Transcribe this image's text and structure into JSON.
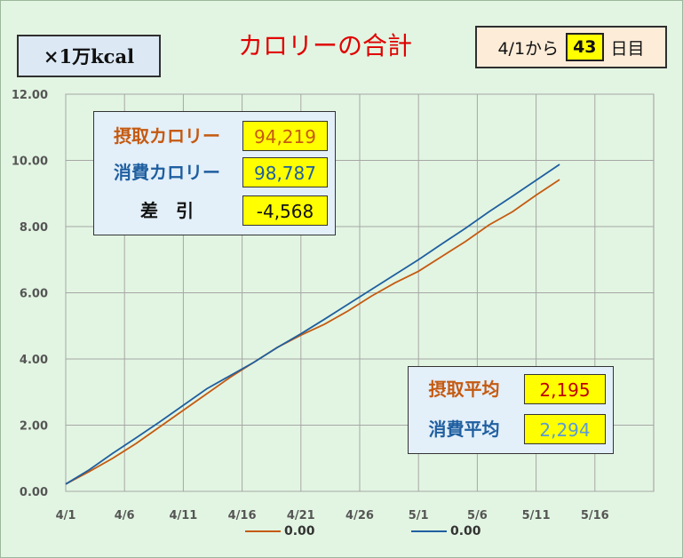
{
  "header": {
    "unit": "×1万kcal",
    "title": "カロリーの合計",
    "day_prefix": "4/1から",
    "day_count": "43",
    "day_suffix": "日目"
  },
  "totals": {
    "intake_label": "摂取カロリー",
    "intake_value": "94,219",
    "burn_label": "消費カロリー",
    "burn_value": "98,787",
    "diff_label": "差　引",
    "diff_value": "-4,568"
  },
  "averages": {
    "intake_label": "摂取平均",
    "intake_value": "2,195",
    "burn_label": "消費平均",
    "burn_value": "2,294"
  },
  "legend": {
    "series1": "0.00",
    "series2": "0.00"
  },
  "colors": {
    "intake": "#c55a11",
    "burn": "#1f5fa0",
    "intake_avg_text": "#c00000",
    "burn_avg_text": "#5b9bd5"
  },
  "chart_data": {
    "type": "line",
    "x_ticks": [
      "4/1",
      "4/6",
      "4/11",
      "4/16",
      "4/21",
      "4/26",
      "5/1",
      "5/6",
      "5/11",
      "5/16"
    ],
    "y_ticks": [
      "0.00",
      "2.00",
      "4.00",
      "6.00",
      "8.00",
      "10.00",
      "12.00"
    ],
    "xlim": [
      "4/1",
      "5/21"
    ],
    "ylim": [
      0,
      12
    ],
    "grid": true,
    "legend_position": "bottom",
    "x_days": [
      0,
      2,
      4,
      6,
      8,
      10,
      12,
      14,
      16,
      18,
      20,
      22,
      24,
      26,
      28,
      30,
      32,
      34,
      36,
      38,
      40,
      42
    ],
    "series": [
      {
        "name": "0.00",
        "values": [
          0.22,
          0.6,
          1.0,
          1.45,
          1.95,
          2.45,
          2.95,
          3.45,
          3.9,
          4.35,
          4.72,
          5.05,
          5.45,
          5.9,
          6.3,
          6.65,
          7.1,
          7.55,
          8.05,
          8.45,
          8.95,
          9.42
        ]
      },
      {
        "name": "0.00",
        "values": [
          0.22,
          0.65,
          1.15,
          1.62,
          2.1,
          2.6,
          3.1,
          3.5,
          3.9,
          4.35,
          4.76,
          5.2,
          5.65,
          6.1,
          6.55,
          7.0,
          7.48,
          7.95,
          8.45,
          8.92,
          9.4,
          9.88
        ]
      }
    ]
  }
}
